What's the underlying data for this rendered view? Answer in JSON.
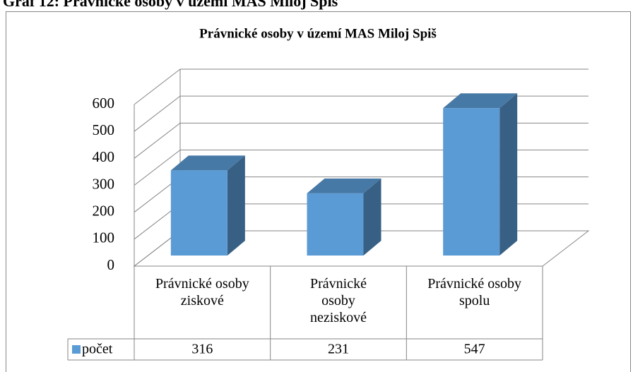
{
  "heading": "Graf 12: Právnické osoby v území MAS Miloj Spiš",
  "chart_data": {
    "type": "bar3d",
    "title": "Právnické osoby v území MAS Miloj Spiš",
    "categories": [
      "Právnické osoby ziskové",
      "Právnické osoby neziskové",
      "Právnické osoby spolu"
    ],
    "series": [
      {
        "name": "počet",
        "color": "#5b9bd5",
        "values": [
          316,
          231,
          547
        ]
      }
    ],
    "ylim": [
      0,
      600
    ],
    "yticks": [
      0,
      100,
      200,
      300,
      400,
      500,
      600
    ],
    "grid": true,
    "data_table": true
  }
}
